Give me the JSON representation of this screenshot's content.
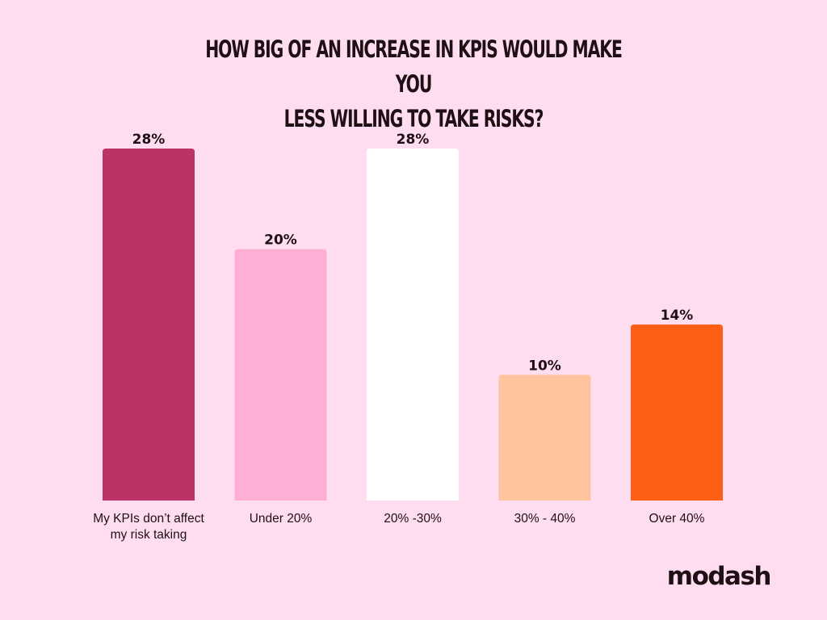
{
  "chart_data": {
    "type": "bar",
    "title_lines": [
      "HOW BIG OF AN INCREASE IN KPIS WOULD MAKE YOU",
      "LESS WILLING TO TAKE RISKS?"
    ],
    "categories": [
      [
        "My KPIs don’t affect",
        "my risk taking"
      ],
      [
        "Under 20%"
      ],
      [
        "20% -30%"
      ],
      [
        "30% - 40%"
      ],
      [
        "Over 40%"
      ]
    ],
    "values": [
      28,
      20,
      28,
      10,
      14
    ],
    "data_labels": [
      "28%",
      "20%",
      "28%",
      "10%",
      "14%"
    ],
    "colors": [
      "#BA3266",
      "#FFAED6",
      "#FFFFFF",
      "#FFC49E",
      "#FF5F14"
    ],
    "ylim": [
      0,
      28
    ],
    "grid": false,
    "legend": "none"
  },
  "brand": {
    "logo_text": "modash"
  }
}
